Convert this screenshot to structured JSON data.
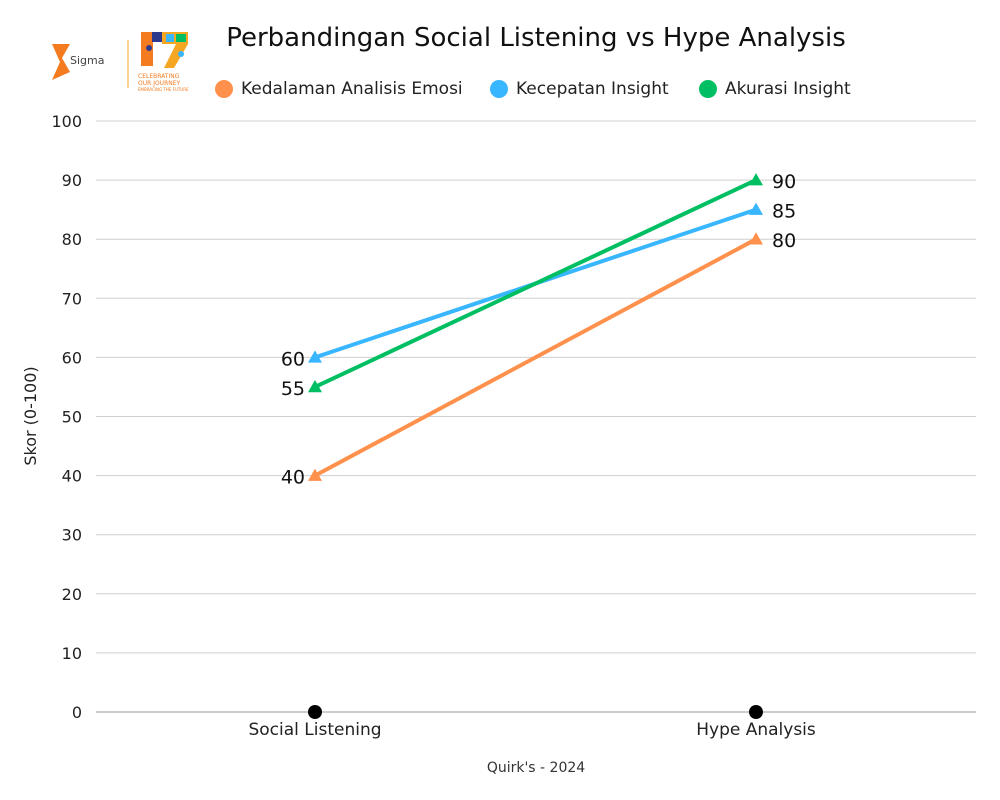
{
  "logo": {
    "brand": "Sigma",
    "tagline_1": "CELEBRATING",
    "tagline_2": "OUR JOURNEY",
    "tagline_3": "EMBRACING THE FUTURE"
  },
  "colors": {
    "orange": "#FF914D",
    "blue": "#38B6FF",
    "green": "#00BF63",
    "grid": "#cfcfcf",
    "axis": "#999999",
    "marker_base": "#000000"
  },
  "chart_data": {
    "type": "line",
    "title": "Perbandingan Social Listening vs Hype Analysis",
    "categories": [
      "Social Listening",
      "Hype Analysis"
    ],
    "series": [
      {
        "name": "Kedalaman Analisis Emosi",
        "values": [
          40,
          80
        ],
        "color": "#FF914D"
      },
      {
        "name": "Kecepatan Insight",
        "values": [
          60,
          85
        ],
        "color": "#38B6FF"
      },
      {
        "name": "Akurasi Insight",
        "values": [
          55,
          90
        ],
        "color": "#00BF63"
      }
    ],
    "ylabel": "Skor (0-100)",
    "xlabel": "",
    "ylim": [
      0,
      100
    ],
    "yticks": [
      0,
      10,
      20,
      30,
      40,
      50,
      60,
      70,
      80,
      90,
      100
    ],
    "grid": true,
    "legend": "top-center",
    "marker": "triangle",
    "source": "Quirk's - 2024"
  }
}
